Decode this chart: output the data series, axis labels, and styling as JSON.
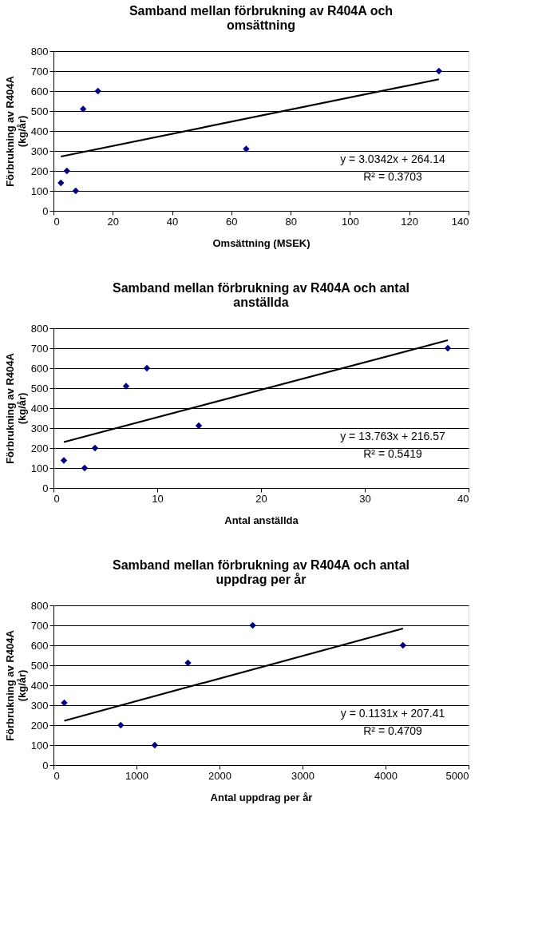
{
  "chart_data": [
    {
      "type": "scatter",
      "title": "Samband mellan förbrukning av R404A och\nomsättning",
      "xlabel": "Omsättning (MSEK)",
      "ylabel": "Förbrukning av R404A\n(kg/år)",
      "xlim": [
        0,
        140
      ],
      "xticks": [
        0,
        20,
        40,
        60,
        80,
        100,
        120,
        140
      ],
      "ylim": [
        0,
        800
      ],
      "yticks": [
        0,
        100,
        200,
        300,
        400,
        500,
        600,
        700,
        800
      ],
      "grid": "y",
      "annotations": [
        "y = 3.0342x + 264.14",
        "R² = 0.3703"
      ],
      "series": [
        {
          "color": "#000080",
          "marker": "diamond",
          "x": [
            2.5,
            4.5,
            7.5,
            10,
            15,
            65,
            130
          ],
          "values": [
            140,
            200,
            100,
            510,
            600,
            310,
            700
          ]
        },
        {
          "type": "line",
          "color": "#000000",
          "x": [
            2.5,
            130
          ],
          "values": [
            272,
            659
          ]
        }
      ]
    },
    {
      "type": "scatter",
      "title": "Samband mellan förbrukning av R404A och antal\nanställda",
      "xlabel": "Antal anställda",
      "ylabel": "Förbrukning av R404A\n(kg/år)",
      "xlim": [
        0,
        40
      ],
      "xticks": [
        0,
        10,
        20,
        30,
        40
      ],
      "ylim": [
        0,
        800
      ],
      "yticks": [
        0,
        100,
        200,
        300,
        400,
        500,
        600,
        700,
        800
      ],
      "grid": "y",
      "annotations": [
        "y = 13.763x + 216.57",
        "R² = 0.5419"
      ],
      "series": [
        {
          "color": "#000080",
          "marker": "diamond",
          "x": [
            1,
            3,
            4,
            7,
            9,
            14,
            38
          ],
          "values": [
            138,
            100,
            200,
            510,
            600,
            312,
            700
          ]
        },
        {
          "type": "line",
          "color": "#000000",
          "x": [
            1,
            38
          ],
          "values": [
            230,
            740
          ]
        }
      ]
    },
    {
      "type": "scatter",
      "title": "Samband mellan förbrukning av R404A och antal\nuppdrag per år",
      "xlabel": "Antal uppdrag per år",
      "ylabel": "Förbrukning av R404A\n(kg/år)",
      "xlim": [
        0,
        5000
      ],
      "xticks": [
        0,
        1000,
        2000,
        3000,
        4000,
        5000
      ],
      "ylim": [
        0,
        800
      ],
      "yticks": [
        0,
        100,
        200,
        300,
        400,
        500,
        600,
        700,
        800
      ],
      "grid": "y",
      "annotations": [
        "y = 0.1131x + 207.41",
        "R² = 0.4709"
      ],
      "series": [
        {
          "color": "#000080",
          "marker": "diamond",
          "x": [
            130,
            810,
            1220,
            1620,
            2400,
            4210
          ],
          "values": [
            312,
            200,
            100,
            512,
            700,
            600
          ]
        },
        {
          "type": "line",
          "color": "#000000",
          "x": [
            130,
            4210
          ],
          "values": [
            222,
            684
          ]
        }
      ]
    }
  ]
}
